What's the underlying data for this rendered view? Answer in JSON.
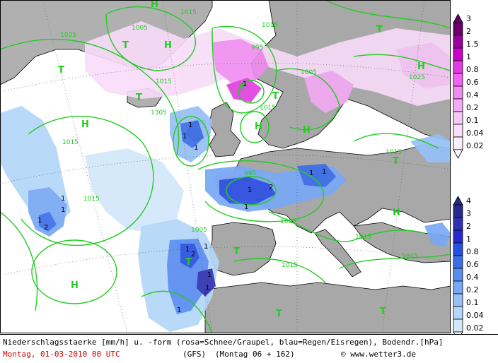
{
  "caption": {
    "description": "Niederschlagsstaerke [mm/h] u. -form (rosa=Schnee/Graupel, blau=Regen/Eisregen), Bodendr.[hPa]",
    "date": "Montag, 01-03-2010  00 UTC",
    "model": "(GFS)",
    "run": "(Montag 06 + 162)",
    "copyright": "© www.wetter3.de"
  },
  "legend_snow": {
    "labels": [
      "3",
      "2",
      "1.5",
      "1",
      "0.8",
      "0.6",
      "0.4",
      "0.2",
      "0.1",
      "0.04",
      "0.02"
    ],
    "colors": [
      "#6a006a",
      "#9a009a",
      "#cc00cc",
      "#e03ce0",
      "#f064f0",
      "#f08cf0",
      "#f4aaf4",
      "#f6c8f6",
      "#f8dcf8",
      "#fbeefb",
      "#ffffff"
    ]
  },
  "legend_rain": {
    "labels": [
      "4",
      "3",
      "2",
      "1",
      "0.8",
      "0.6",
      "0.4",
      "0.2",
      "0.1",
      "0.04",
      "0.02"
    ],
    "colors": [
      "#2a2a8c",
      "#3030b0",
      "#2828d0",
      "#2850e0",
      "#3c6ee8",
      "#5a8cf0",
      "#78a8f4",
      "#96c0f6",
      "#b4d6f8",
      "#d2e8fa",
      "#ffffff"
    ]
  },
  "map": {
    "pressure_labels": [
      "1025",
      "1005",
      "1015",
      "995",
      "1015",
      "1005",
      "1025",
      "1015",
      "1305",
      "1015",
      "1015",
      "995",
      "1015",
      "1005",
      "1005",
      "1015",
      "1015",
      "1015",
      "1015"
    ],
    "highs": [
      "H",
      "H",
      "H",
      "H",
      "H",
      "H",
      "H",
      "H"
    ],
    "lows": [
      "T",
      "T",
      "T",
      "T",
      "T",
      "T",
      "T",
      "T",
      "T",
      "T",
      "T"
    ],
    "precip_labels": [
      "1",
      "1",
      "1",
      "2",
      "1",
      "1",
      "1",
      "1",
      "1",
      "1",
      "2",
      "1",
      "1",
      "2",
      "1",
      "1",
      "1",
      "1",
      "1"
    ]
  }
}
